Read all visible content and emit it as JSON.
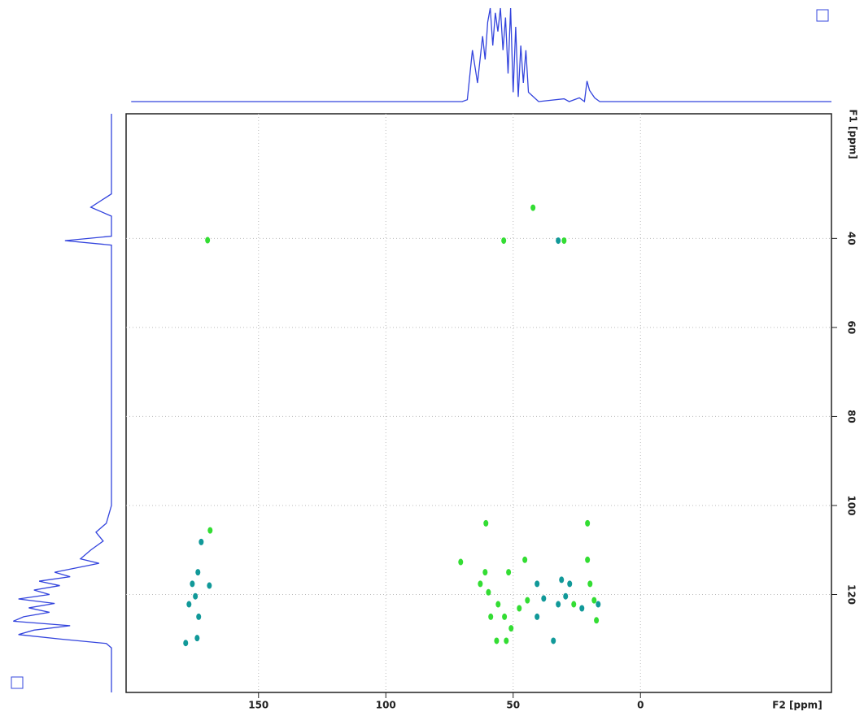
{
  "chart_data": {
    "type": "scatter",
    "x_label": "F2 [ppm]",
    "y_label": "F1 [ppm]",
    "xlim": [
      202,
      -75
    ],
    "xticks": [
      150,
      100,
      50,
      0
    ],
    "ylim": [
      12,
      142
    ],
    "yticks": [
      40,
      60,
      80,
      100,
      120
    ],
    "grid": true,
    "series": [
      {
        "color": "#33dd33",
        "x": [
          42.2,
          53.7,
          30,
          60.7,
          45.4,
          61,
          51.8,
          59.7,
          55.9,
          53.4,
          50.8,
          56.5,
          52.7,
          62.9,
          20.8,
          20.8,
          19.8,
          18.2,
          17.3,
          70.6,
          44.4,
          26.2,
          170,
          58.8,
          47.6,
          169
        ],
        "values": [
          33.1,
          40.5,
          40.5,
          104,
          112.2,
          115,
          115,
          119.5,
          122.2,
          125,
          127.6,
          130.4,
          130.4,
          117.6,
          104,
          112.2,
          117.6,
          121.3,
          125.8,
          112.7,
          121.3,
          122.2,
          40.4,
          125,
          123.1,
          105.6
        ]
      },
      {
        "color": "#119999",
        "x": [
          32.3,
          40.6,
          38,
          31,
          29.4,
          32.3,
          27.8,
          34.2,
          23,
          16.6,
          40.6,
          172.5,
          173.8,
          176,
          174.8,
          169.3,
          177.3,
          173.5,
          178.6,
          174.1
        ],
        "values": [
          40.5,
          117.6,
          120.9,
          116.7,
          120.4,
          122.2,
          117.6,
          130.4,
          123.1,
          122.2,
          125,
          108.2,
          115,
          117.6,
          120.4,
          118,
          122.2,
          125,
          130.9,
          129.8
        ]
      }
    ],
    "projections": {
      "f2": {
        "color": "#3344dd",
        "ylim": [
          0,
          100
        ],
        "x": [
          200,
          70,
          68,
          66,
          64,
          62,
          61,
          60,
          59,
          58,
          57,
          56,
          55,
          54,
          53,
          52,
          51,
          50,
          49,
          48,
          47,
          46,
          45,
          44,
          42,
          40,
          30,
          28,
          24,
          22,
          21,
          20,
          18,
          16,
          -75
        ],
        "values": [
          0,
          0,
          2,
          55,
          20,
          70,
          45,
          85,
          100,
          60,
          95,
          75,
          100,
          55,
          90,
          30,
          100,
          10,
          80,
          5,
          60,
          20,
          55,
          10,
          5,
          0,
          3,
          0,
          4,
          0,
          22,
          12,
          4,
          0,
          0
        ]
      },
      "f1": {
        "color": "#3344dd",
        "xlim": [
          0,
          100
        ],
        "y": [
          12,
          30,
          33,
          35,
          39.5,
          40.5,
          41.5,
          100,
          104,
          106,
          108,
          110,
          112,
          113,
          115,
          116,
          117,
          118,
          119,
          120,
          121,
          122,
          123,
          124,
          125,
          126,
          127,
          128,
          129,
          130,
          131,
          132,
          142
        ],
        "values": [
          0,
          0,
          20,
          0,
          0,
          45,
          0,
          0,
          5,
          15,
          8,
          20,
          30,
          12,
          55,
          40,
          70,
          50,
          75,
          60,
          90,
          55,
          80,
          60,
          85,
          95,
          40,
          75,
          90,
          50,
          5,
          0,
          0
        ]
      }
    }
  }
}
